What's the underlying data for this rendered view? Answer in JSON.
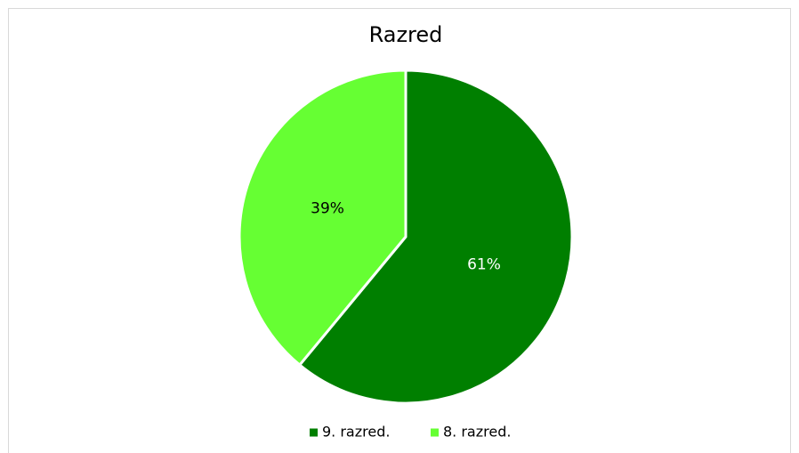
{
  "chart_data": {
    "type": "pie",
    "title": "Razred",
    "categories": [
      "9. razred.",
      "8. razred."
    ],
    "values": [
      61,
      39
    ],
    "value_labels": [
      "61%",
      "39%"
    ],
    "colors": [
      "#007f00",
      "#66ff33"
    ],
    "legend": "bottom"
  }
}
